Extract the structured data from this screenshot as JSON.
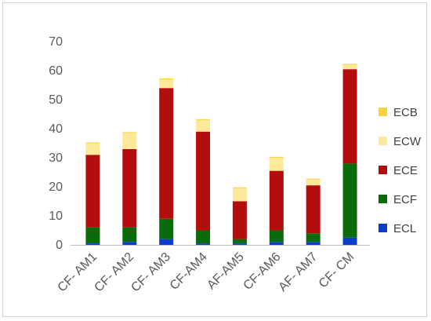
{
  "chart_data": {
    "type": "bar",
    "stacked": true,
    "categories": [
      "CF- AM1",
      "CF- AM2",
      "CF- AM3",
      "CF-AM4",
      "AF-AM5",
      "CF-AM6",
      "AF- AM7",
      "CF- CM"
    ],
    "series": [
      {
        "name": "ECL",
        "color": "#0b3ccc",
        "values": [
          0.5,
          1,
          2,
          0.5,
          0.5,
          1,
          1,
          2.5
        ]
      },
      {
        "name": "ECF",
        "color": "#0a6b0a",
        "values": [
          5.5,
          5,
          7,
          4.5,
          1.5,
          4,
          3,
          25.5
        ]
      },
      {
        "name": "ECE",
        "color": "#b30d0d",
        "values": [
          25,
          27,
          45,
          34,
          13,
          20.5,
          16.5,
          32.5
        ]
      },
      {
        "name": "ECW",
        "color": "#fde99a",
        "values": [
          4,
          5.5,
          3,
          4,
          4.5,
          4.5,
          2,
          1.5
        ]
      },
      {
        "name": "ECB",
        "color": "#f9d33e",
        "values": [
          0.3,
          0.3,
          0.3,
          0.3,
          0.3,
          0.3,
          0.3,
          0.3
        ]
      }
    ],
    "legend_order": [
      "ECB",
      "ECW",
      "ECE",
      "ECF",
      "ECL"
    ],
    "y_ticks": [
      0,
      10,
      20,
      30,
      40,
      50,
      60,
      70
    ],
    "ylim": [
      0,
      70
    ],
    "grid": false,
    "legend_position": "right",
    "title": "",
    "xlabel": "",
    "ylabel": ""
  }
}
